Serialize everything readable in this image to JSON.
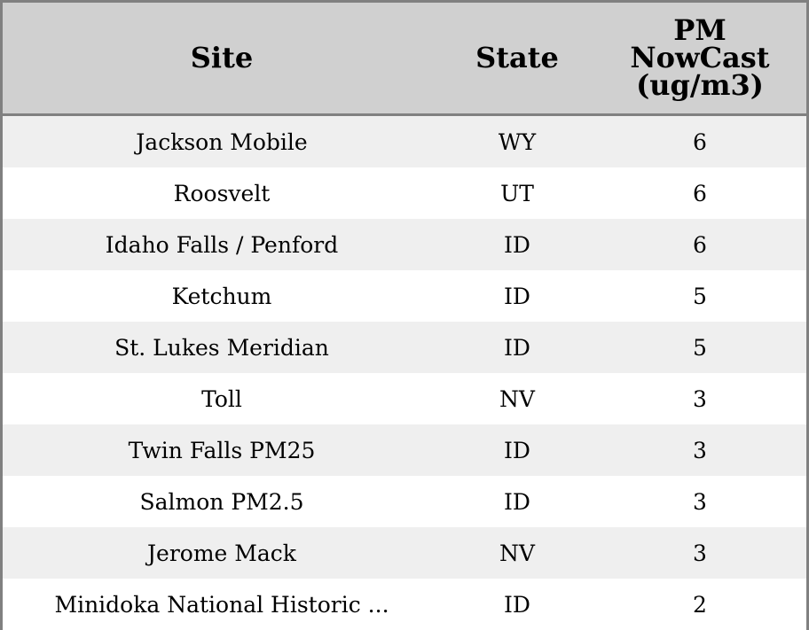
{
  "chart_data": {
    "type": "table",
    "columns": [
      "Site",
      "State",
      "PM NowCast (ug/m3)"
    ],
    "rows": [
      [
        "Jackson Mobile",
        "WY",
        "6"
      ],
      [
        "Roosvelt",
        "UT",
        "6"
      ],
      [
        "Idaho Falls / Penford",
        "ID",
        "6"
      ],
      [
        "Ketchum",
        "ID",
        "5"
      ],
      [
        "St. Lukes Meridian",
        "ID",
        "5"
      ],
      [
        "Toll",
        "NV",
        "3"
      ],
      [
        "Twin Falls PM25",
        "ID",
        "3"
      ],
      [
        "Salmon PM2.5",
        "ID",
        "3"
      ],
      [
        "Jerome Mack",
        "NV",
        "3"
      ],
      [
        "Minidoka National Historic ...",
        "ID",
        "2"
      ]
    ]
  },
  "colors": {
    "header_bg": "#d0d0d0",
    "stripe_bg": "#efefef",
    "border": "#808080"
  }
}
